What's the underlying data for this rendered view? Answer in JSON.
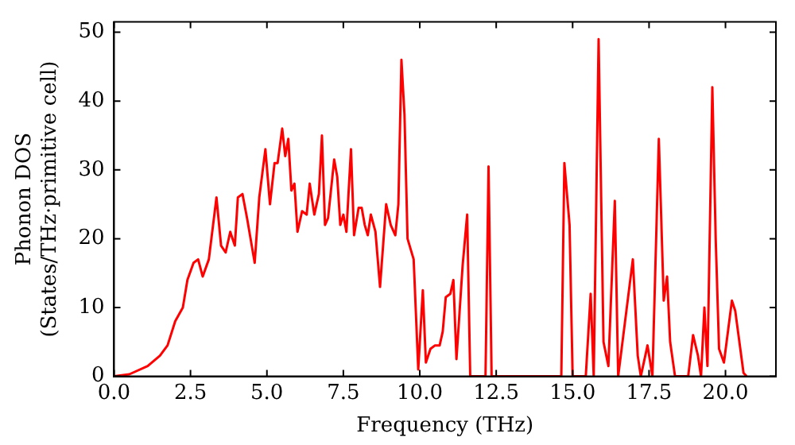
{
  "chart_data": {
    "type": "line",
    "xlabel": "Frequency (THz)",
    "ylabel": "Phonon DOS\n(States/THz·primitive cell)",
    "x": [
      0,
      0.5,
      1.1,
      1.5,
      1.75,
      2.0,
      2.25,
      2.4,
      2.6,
      2.75,
      2.9,
      3.1,
      3.35,
      3.5,
      3.65,
      3.8,
      3.95,
      4.05,
      4.2,
      4.35,
      4.6,
      4.75,
      4.95,
      5.1,
      5.25,
      5.35,
      5.5,
      5.6,
      5.7,
      5.8,
      5.9,
      6.0,
      6.15,
      6.3,
      6.4,
      6.55,
      6.7,
      6.8,
      6.9,
      7.0,
      7.2,
      7.3,
      7.4,
      7.5,
      7.6,
      7.75,
      7.85,
      8.0,
      8.1,
      8.2,
      8.3,
      8.4,
      8.55,
      8.7,
      8.9,
      9.05,
      9.2,
      9.3,
      9.4,
      9.5,
      9.6,
      9.8,
      9.95,
      10.1,
      10.2,
      10.35,
      10.5,
      10.65,
      10.75,
      10.85,
      11.0,
      11.1,
      11.2,
      11.4,
      11.55,
      11.65,
      12.15,
      12.25,
      12.35,
      14.63,
      14.73,
      14.9,
      15.0,
      15.43,
      15.59,
      15.69,
      15.85,
      16.01,
      16.17,
      16.38,
      16.49,
      16.97,
      17.13,
      17.23,
      17.45,
      17.61,
      17.82,
      17.98,
      18.09,
      18.19,
      18.35,
      18.78,
      18.94,
      19.1,
      19.2,
      19.31,
      19.41,
      19.57,
      19.68,
      19.79,
      19.95,
      20.21,
      20.32,
      20.59,
      20.69
    ],
    "series": [
      {
        "color": "#ff0000",
        "values": [
          0,
          0.3,
          1.5,
          3,
          4.5,
          8,
          10,
          14,
          16.5,
          17,
          14.5,
          17,
          26,
          19,
          18,
          21,
          19,
          26,
          26.5,
          23,
          16.5,
          26,
          33,
          25,
          31,
          31,
          36,
          32,
          34.5,
          27,
          28,
          21,
          24,
          23.5,
          28,
          23.5,
          26.5,
          35,
          22,
          23,
          31.5,
          29,
          22,
          23.5,
          21,
          33,
          20.5,
          24.5,
          24.5,
          22,
          20.5,
          23.5,
          21,
          13,
          25,
          22,
          20.5,
          25,
          46,
          38,
          20,
          17,
          1,
          12.5,
          2,
          4,
          4.5,
          4.5,
          6.5,
          11.5,
          12,
          14,
          2.5,
          16,
          23.5,
          0,
          0,
          30.5,
          0,
          0,
          31,
          22,
          0,
          0,
          12,
          0,
          49,
          5,
          1.5,
          25.5,
          0,
          17,
          3,
          0,
          4.5,
          0,
          34.5,
          11,
          14.5,
          5,
          0,
          0,
          6,
          3,
          0,
          10,
          1.5,
          42,
          20,
          4,
          2,
          11,
          9.5,
          0.5,
          0
        ]
      }
    ],
    "xlim": [
      0,
      21.65
    ],
    "ylim": [
      0,
      51.5
    ],
    "xticks": [
      {
        "value": 0,
        "label": "0.0"
      },
      {
        "value": 2.5,
        "label": "2.5"
      },
      {
        "value": 5,
        "label": "5.0"
      },
      {
        "value": 7.5,
        "label": "7.5"
      },
      {
        "value": 10,
        "label": "10.0"
      },
      {
        "value": 12.5,
        "label": "12.5"
      },
      {
        "value": 15,
        "label": "15.0"
      },
      {
        "value": 17.5,
        "label": "17.5"
      },
      {
        "value": 20,
        "label": "20.0"
      }
    ],
    "yticks": [
      0,
      10,
      20,
      30,
      40,
      50
    ],
    "grid": false,
    "legend": false,
    "marker": "none",
    "line_style": "solid"
  }
}
